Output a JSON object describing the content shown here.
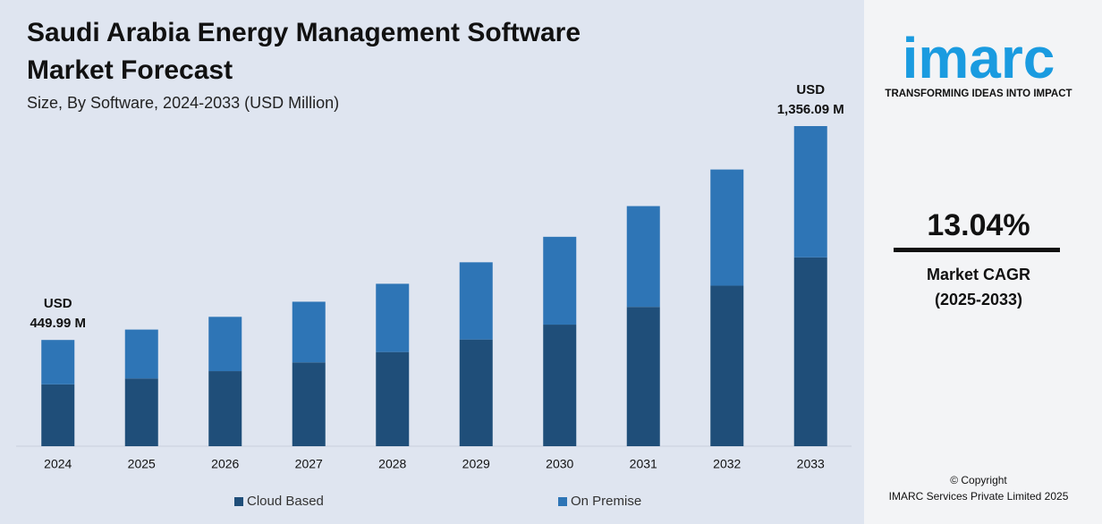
{
  "chart_data": {
    "type": "bar",
    "stacked": true,
    "title": "Saudi Arabia Energy Management Software Market Forecast",
    "subtitle": "Size, By Software, 2024-2033 (USD Million)",
    "categories": [
      "2024",
      "2025",
      "2026",
      "2027",
      "2028",
      "2029",
      "2030",
      "2031",
      "2032",
      "2033"
    ],
    "series": [
      {
        "name": "Cloud Based",
        "color": "#1f4e79",
        "values": [
          262,
          287,
          318,
          355,
          399,
          452,
          515,
          590,
          680,
          800
        ]
      },
      {
        "name": "On Premise",
        "color": "#2e75b6",
        "values": [
          188,
          207,
          230,
          257,
          289,
          327,
          372,
          427,
          492,
          556
        ]
      }
    ],
    "annotations": [
      {
        "x": "2024",
        "value": 449.99,
        "label": [
          "USD",
          "449.99 M"
        ]
      },
      {
        "x": "2033",
        "value": 1356.09,
        "label": [
          "USD",
          "1,356.09 M"
        ]
      }
    ],
    "legend": "bottom"
  },
  "sidebar": {
    "logo": "imarc",
    "tagline": "TRANSFORMING IDEAS INTO IMPACT",
    "cagr": "13.04%",
    "cagr_label": [
      "Market CAGR",
      "(2025-2033)"
    ],
    "copyright": [
      "© Copyright",
      "IMARC Services Private Limited 2025"
    ]
  }
}
